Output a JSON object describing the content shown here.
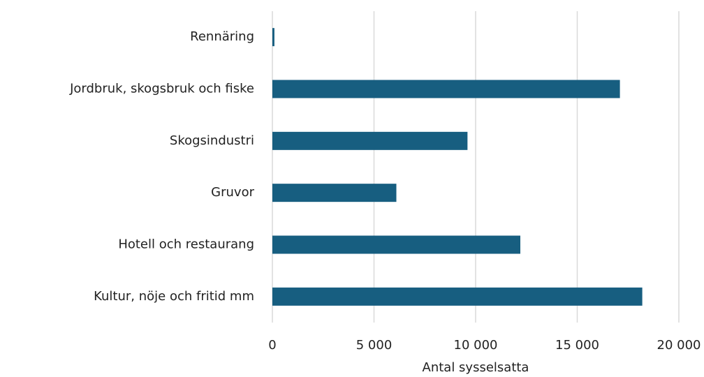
{
  "chart_data": {
    "type": "bar",
    "orientation": "horizontal",
    "categories": [
      "Rennäring",
      "Jordbruk, skogsbruk och fiske",
      "Skogsindustri",
      "Gruvor",
      "Hotell och restaurang",
      "Kultur, nöje och fritid mm"
    ],
    "values": [
      100,
      17100,
      9600,
      6100,
      12200,
      18200
    ],
    "color": "#175e80",
    "x_label": "Antal sysselsatta",
    "xlim": [
      0,
      20000
    ],
    "xticks": [
      0,
      {
        "value": 5000,
        "label": "5 000"
      },
      {
        "value": 10000,
        "label": "10 000"
      },
      {
        "value": 15000,
        "label": "15 000"
      },
      {
        "value": 20000,
        "label": "20 000"
      }
    ],
    "grid": true
  }
}
